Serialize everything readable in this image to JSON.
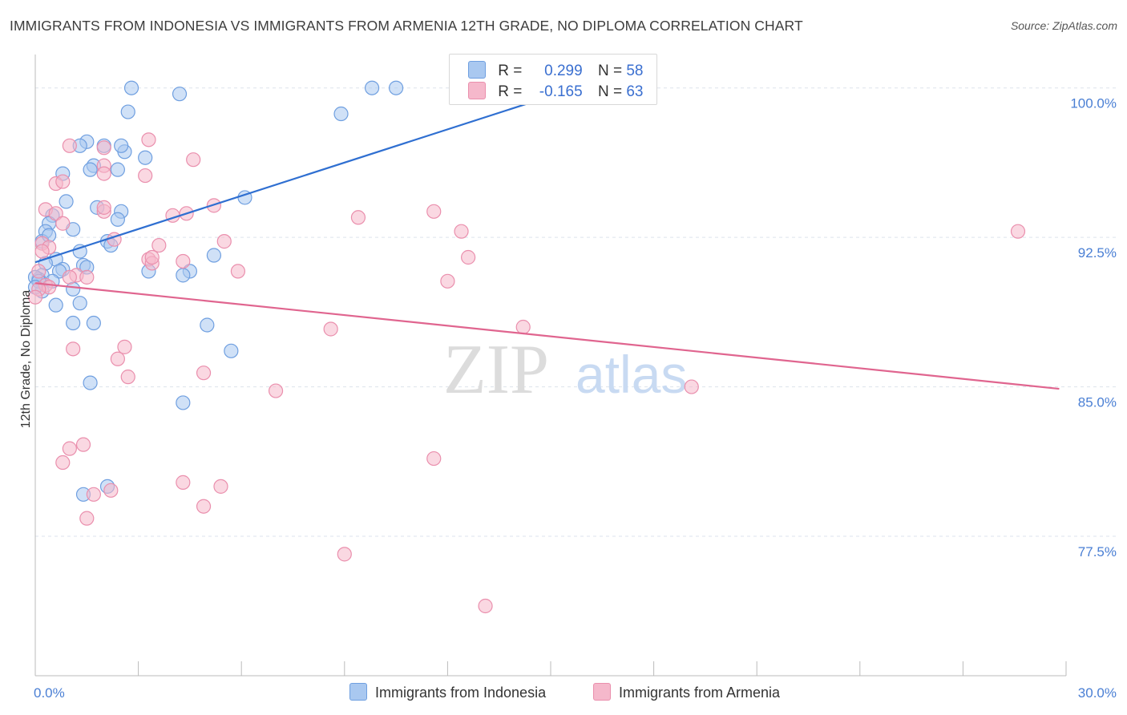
{
  "title": "IMMIGRANTS FROM INDONESIA VS IMMIGRANTS FROM ARMENIA 12TH GRADE, NO DIPLOMA CORRELATION CHART",
  "source": "Source: ZipAtlas.com",
  "watermark": {
    "zip": "ZIP",
    "atlas": "atlas"
  },
  "colors": {
    "blue_fill": "#a9c8f0",
    "blue_stroke": "#6f9fe0",
    "blue_line": "#2f6fd1",
    "pink_fill": "#f5b8cb",
    "pink_stroke": "#ea8fad",
    "pink_line": "#e0658f",
    "grid": "#dde3ec",
    "tick_text": "#4a7fd4"
  },
  "legend_top": {
    "rows": [
      {
        "r_label": "R =",
        "r_value": "0.299",
        "n_label": "N =",
        "n_value": "58",
        "color": "#a9c8f0"
      },
      {
        "r_label": "R =",
        "r_value": "-0.165",
        "n_label": "N =",
        "n_value": "63",
        "color": "#f5b8cb"
      }
    ]
  },
  "chart_data": {
    "type": "scatter",
    "ylabel": "12th Grade, No Diploma",
    "xlabel": "",
    "xlim": [
      0,
      30
    ],
    "ylim": [
      70.5,
      102.0
    ],
    "x_tick_labels": [
      "0.0%",
      "30.0%"
    ],
    "x_tick_values": [
      0,
      30
    ],
    "x_minor_ticks": [
      3,
      6,
      9,
      12,
      15,
      18,
      21,
      24,
      27,
      30
    ],
    "y_ticks": [
      {
        "value": 100.0,
        "label": "100.0%"
      },
      {
        "value": 92.5,
        "label": "92.5%"
      },
      {
        "value": 85.0,
        "label": "85.0%"
      },
      {
        "value": 77.5,
        "label": "77.5%"
      }
    ],
    "grid": true,
    "legend_position": "top-center",
    "series": [
      {
        "name": "Immigrants from Indonesia",
        "color": "#a9c8f0",
        "trend": {
          "x": [
            0,
            15.2
          ],
          "y": [
            91.25,
            99.7
          ]
        },
        "points": [
          [
            2.8,
            100.0
          ],
          [
            4.2,
            99.7
          ],
          [
            9.8,
            100.0
          ],
          [
            10.5,
            100.0
          ],
          [
            2.7,
            98.8
          ],
          [
            8.9,
            98.7
          ],
          [
            1.5,
            97.3
          ],
          [
            2.0,
            97.1
          ],
          [
            2.6,
            96.8
          ],
          [
            2.5,
            97.1
          ],
          [
            1.3,
            97.1
          ],
          [
            1.7,
            96.1
          ],
          [
            1.6,
            95.9
          ],
          [
            3.2,
            96.5
          ],
          [
            0.8,
            95.7
          ],
          [
            2.4,
            95.9
          ],
          [
            0.9,
            94.3
          ],
          [
            6.1,
            94.5
          ],
          [
            1.8,
            94.0
          ],
          [
            2.5,
            93.8
          ],
          [
            0.5,
            93.6
          ],
          [
            0.4,
            93.2
          ],
          [
            2.4,
            93.4
          ],
          [
            1.1,
            92.9
          ],
          [
            0.3,
            92.8
          ],
          [
            0.2,
            92.3
          ],
          [
            2.1,
            92.3
          ],
          [
            2.2,
            92.1
          ],
          [
            0.4,
            92.6
          ],
          [
            5.2,
            91.6
          ],
          [
            0.6,
            91.4
          ],
          [
            1.3,
            91.8
          ],
          [
            0.3,
            91.2
          ],
          [
            1.4,
            91.1
          ],
          [
            1.5,
            91.0
          ],
          [
            0.8,
            90.9
          ],
          [
            0.7,
            90.8
          ],
          [
            3.3,
            90.8
          ],
          [
            4.5,
            90.8
          ],
          [
            4.3,
            90.6
          ],
          [
            0.2,
            90.6
          ],
          [
            0.1,
            90.4
          ],
          [
            0.5,
            90.3
          ],
          [
            1.1,
            89.9
          ],
          [
            0.2,
            89.8
          ],
          [
            1.3,
            89.2
          ],
          [
            0.6,
            89.1
          ],
          [
            1.1,
            88.2
          ],
          [
            1.7,
            88.2
          ],
          [
            5.0,
            88.1
          ],
          [
            5.7,
            86.8
          ],
          [
            1.6,
            85.2
          ],
          [
            4.3,
            84.2
          ],
          [
            2.1,
            80.0
          ],
          [
            1.4,
            79.6
          ],
          [
            0.0,
            90.5
          ],
          [
            0.1,
            90.3
          ],
          [
            0.0,
            90.0
          ]
        ]
      },
      {
        "name": "Immigrants from Armenia",
        "color": "#f5b8cb",
        "trend": {
          "x": [
            0,
            29.8
          ],
          "y": [
            90.2,
            84.9
          ]
        },
        "points": [
          [
            3.3,
            97.4
          ],
          [
            1.0,
            97.1
          ],
          [
            2.0,
            97.0
          ],
          [
            4.6,
            96.4
          ],
          [
            2.0,
            96.1
          ],
          [
            2.0,
            95.7
          ],
          [
            3.2,
            95.6
          ],
          [
            0.6,
            95.2
          ],
          [
            0.8,
            95.3
          ],
          [
            5.2,
            94.1
          ],
          [
            0.3,
            93.9
          ],
          [
            2.0,
            93.8
          ],
          [
            2.0,
            94.0
          ],
          [
            4.0,
            93.6
          ],
          [
            9.4,
            93.5
          ],
          [
            11.6,
            93.8
          ],
          [
            0.6,
            93.7
          ],
          [
            0.8,
            93.2
          ],
          [
            12.4,
            92.8
          ],
          [
            28.6,
            92.8
          ],
          [
            5.5,
            92.3
          ],
          [
            2.3,
            92.4
          ],
          [
            0.2,
            92.2
          ],
          [
            0.4,
            92.0
          ],
          [
            3.6,
            92.1
          ],
          [
            0.2,
            91.8
          ],
          [
            12.6,
            91.5
          ],
          [
            3.3,
            91.4
          ],
          [
            4.3,
            91.3
          ],
          [
            3.4,
            91.2
          ],
          [
            5.9,
            90.8
          ],
          [
            0.1,
            90.8
          ],
          [
            1.2,
            90.6
          ],
          [
            1.0,
            90.5
          ],
          [
            12.0,
            90.3
          ],
          [
            0.3,
            90.1
          ],
          [
            0.4,
            90.0
          ],
          [
            0.1,
            89.9
          ],
          [
            0.0,
            89.5
          ],
          [
            8.6,
            87.9
          ],
          [
            14.2,
            88.0
          ],
          [
            1.1,
            86.9
          ],
          [
            2.6,
            87.0
          ],
          [
            2.4,
            86.4
          ],
          [
            4.9,
            85.7
          ],
          [
            2.7,
            85.5
          ],
          [
            7.0,
            84.8
          ],
          [
            19.1,
            85.0
          ],
          [
            1.4,
            82.1
          ],
          [
            1.0,
            81.9
          ],
          [
            0.8,
            81.2
          ],
          [
            11.6,
            81.4
          ],
          [
            4.3,
            80.2
          ],
          [
            5.4,
            80.0
          ],
          [
            2.2,
            79.8
          ],
          [
            1.7,
            79.6
          ],
          [
            4.9,
            79.0
          ],
          [
            1.5,
            78.4
          ],
          [
            9.0,
            76.6
          ],
          [
            13.1,
            74.0
          ],
          [
            1.5,
            90.5
          ],
          [
            4.4,
            93.7
          ],
          [
            3.4,
            91.5
          ]
        ]
      }
    ]
  }
}
